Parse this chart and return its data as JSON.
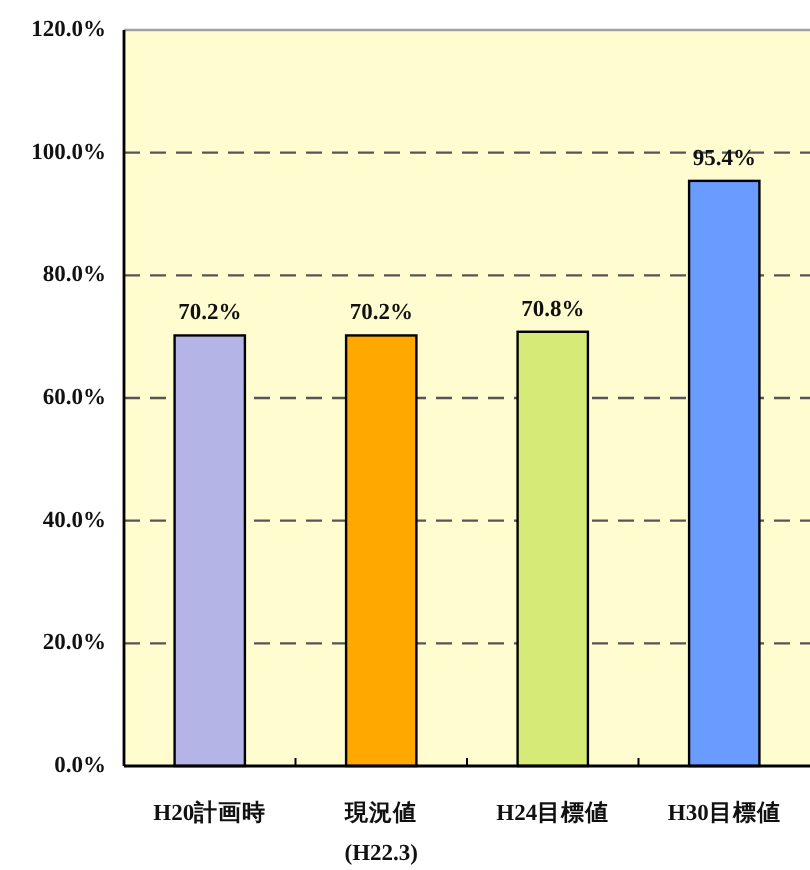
{
  "chart_data": {
    "type": "bar",
    "categories": [
      "H20計画時",
      "現況値\n(H22.3)",
      "H24目標値",
      "H30目標値"
    ],
    "values": [
      70.2,
      70.2,
      70.8,
      95.4
    ],
    "colors": [
      "#b4b4e6",
      "#ffa800",
      "#d6ea78",
      "#6a9cff"
    ],
    "value_labels": [
      "70.2%",
      "70.2%",
      "70.8%",
      "95.4%"
    ],
    "ylim": [
      0,
      120
    ],
    "yticks": [
      {
        "value": 0,
        "label": "0.0%"
      },
      {
        "value": 20,
        "label": "20.0%"
      },
      {
        "value": 40,
        "label": "40.0%"
      },
      {
        "value": 60,
        "label": "60.0%"
      },
      {
        "value": 80,
        "label": "80.0%"
      },
      {
        "value": 100,
        "label": "100.0%"
      },
      {
        "value": 120,
        "label": "120.0%"
      }
    ],
    "grid": "y"
  }
}
